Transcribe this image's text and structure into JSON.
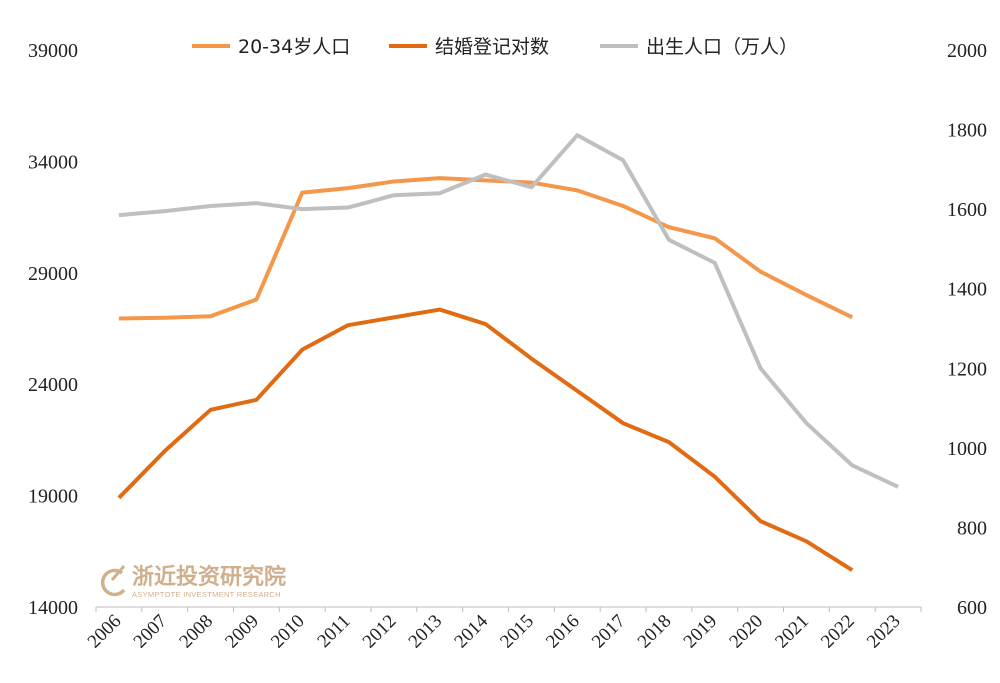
{
  "chart_data": {
    "type": "line",
    "categories": [
      "2006",
      "2007",
      "2008",
      "2009",
      "2010",
      "2011",
      "2012",
      "2013",
      "2014",
      "2015",
      "2016",
      "2017",
      "2018",
      "2019",
      "2020",
      "2021",
      "2022",
      "2023"
    ],
    "series": [
      {
        "name": "20-34岁人口",
        "axis": "left",
        "color": "#f4974a",
        "values": [
          26950,
          26980,
          27050,
          27800,
          32600,
          32800,
          33100,
          33250,
          33150,
          33050,
          32700,
          32000,
          31050,
          30550,
          29050,
          28000,
          27000,
          null
        ]
      },
      {
        "name": "结婚登记对数",
        "axis": "left",
        "color": "#e06b12",
        "values": [
          18900,
          21000,
          22850,
          23300,
          25550,
          26650,
          27000,
          27350,
          26700,
          25150,
          23700,
          22250,
          21400,
          19850,
          17850,
          16950,
          15650,
          null
        ]
      },
      {
        "name": "出生人口（万人）",
        "axis": "right",
        "color": "#bfbfbf",
        "values": [
          1585,
          1595,
          1608,
          1615,
          1600,
          1604,
          1635,
          1640,
          1687,
          1655,
          1786,
          1723,
          1523,
          1465,
          1200,
          1062,
          956,
          902
        ]
      }
    ],
    "y_left": {
      "min": 14000,
      "max": 39000,
      "ticks": [
        "14000",
        "19000",
        "24000",
        "29000",
        "34000",
        "39000"
      ]
    },
    "y_right": {
      "min": 600,
      "max": 2000,
      "ticks": [
        "600",
        "800",
        "1000",
        "1200",
        "1400",
        "1600",
        "1800",
        "2000"
      ]
    },
    "legend_position": "top",
    "grid": false
  },
  "watermark": {
    "title": "浙近投资研究院",
    "subtitle": "ASYMPTOTE INVESTMENT RESEARCH",
    "color": "#c9a27a"
  }
}
